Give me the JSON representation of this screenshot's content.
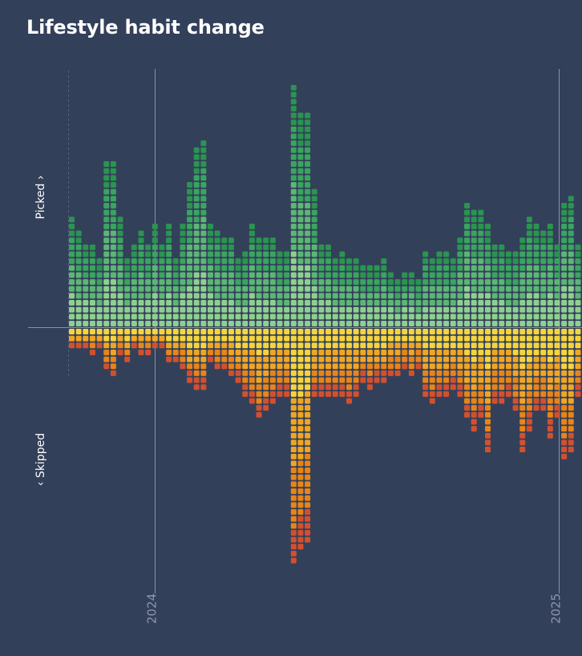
{
  "page": {
    "title": "Lifestyle habit change"
  },
  "colors": {
    "background": "#33405a",
    "picked_shades": [
      "#8fcf90",
      "#5cb675",
      "#3aa460",
      "#2a9450"
    ],
    "skipped_shades": [
      "#f5d43c",
      "#f0a623",
      "#e88418",
      "#d3502e"
    ],
    "gridline": "#8892a6",
    "baseline": "#8892a6"
  },
  "chart_data": {
    "type": "bar",
    "subtype": "diverging stacked dot columns",
    "title": "Lifestyle habit change",
    "ylabel_top": "Picked ›",
    "ylabel_bottom": "‹ Skipped",
    "x_ticks": [
      "2024",
      "2025"
    ],
    "categories_per_column": "one column per week",
    "series": [
      {
        "name": "Picked",
        "values": [
          16,
          14,
          12,
          12,
          10,
          24,
          24,
          16,
          10,
          12,
          14,
          12,
          15,
          12,
          15,
          10,
          15,
          21,
          26,
          27,
          15,
          14,
          13,
          13,
          10,
          11,
          15,
          13,
          13,
          13,
          11,
          11,
          35,
          31,
          31,
          20,
          12,
          12,
          10,
          11,
          10,
          10,
          9,
          9,
          9,
          10,
          8,
          7,
          8,
          8,
          7,
          11,
          10,
          11,
          11,
          10,
          13,
          18,
          17,
          17,
          15,
          12,
          12,
          11,
          11,
          13,
          16,
          15,
          14,
          15,
          12,
          18,
          19,
          12,
          10,
          8,
          10,
          21,
          15,
          26
        ]
      },
      {
        "name": "Skipped",
        "values": [
          3,
          3,
          3,
          4,
          3,
          6,
          7,
          4,
          5,
          3,
          4,
          4,
          3,
          3,
          5,
          5,
          6,
          8,
          9,
          9,
          5,
          6,
          6,
          7,
          8,
          10,
          11,
          13,
          12,
          11,
          10,
          10,
          34,
          32,
          31,
          10,
          10,
          10,
          10,
          10,
          11,
          10,
          8,
          9,
          8,
          8,
          7,
          7,
          6,
          7,
          6,
          10,
          11,
          10,
          10,
          9,
          10,
          13,
          15,
          13,
          18,
          11,
          11,
          10,
          12,
          18,
          15,
          12,
          12,
          16,
          13,
          19,
          18,
          10,
          8,
          6,
          8,
          19,
          20,
          20
        ]
      }
    ]
  }
}
